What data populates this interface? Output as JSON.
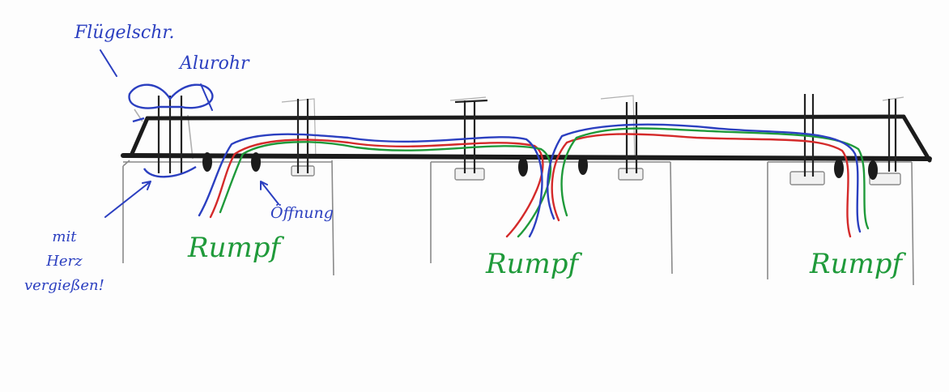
{
  "labels": {
    "fluegelschraube": "Flügelschr.",
    "alurohr": "Alurohr",
    "oeffnung": "Öffnung",
    "mit_herz_line1": "mit",
    "mit_herz_line2": "Herz",
    "mit_herz_line3": "vergießen!",
    "rumpf_1": "Rumpf",
    "rumpf_2": "Rumpf",
    "rumpf_3": "Rumpf"
  },
  "colors": {
    "frame": "#1b1b1b",
    "pencil": "#9a9a9a",
    "ink_blue": "#2b3fc0",
    "wire_red": "#d42a2a",
    "wire_green": "#1f9a3a",
    "wire_blue": "#2b3fc0"
  },
  "icons": [
    "wing-nut-icon",
    "cable-grommet-icon"
  ]
}
